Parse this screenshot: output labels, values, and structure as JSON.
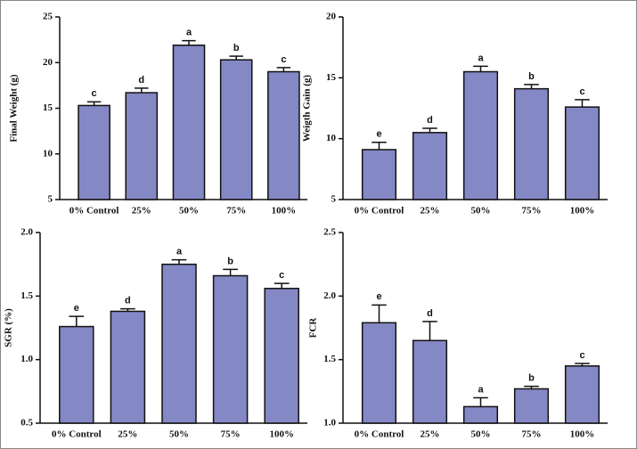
{
  "chart_data": [
    {
      "type": "bar",
      "ylabel": "Final Weight (g)",
      "categories": [
        "0% Control",
        "25%",
        "50%",
        "75%",
        "100%"
      ],
      "values": [
        15.3,
        16.7,
        21.9,
        20.3,
        19.0
      ],
      "errors": [
        0.4,
        0.5,
        0.5,
        0.4,
        0.45
      ],
      "annotations": [
        "c",
        "d",
        "a",
        "b",
        "c"
      ],
      "color": "#8488c4",
      "ylim": [
        5,
        25
      ],
      "yticks": [
        5,
        10,
        15,
        20,
        25
      ]
    },
    {
      "type": "bar",
      "ylabel": "Weigth Gain (g)",
      "categories": [
        "0% Control",
        "25%",
        "50%",
        "75%",
        "100%"
      ],
      "values": [
        9.1,
        10.5,
        15.5,
        14.1,
        12.6
      ],
      "errors": [
        0.6,
        0.35,
        0.45,
        0.35,
        0.6
      ],
      "annotations": [
        "e",
        "d",
        "a",
        "b",
        "c"
      ],
      "color": "#8488c4",
      "ylim": [
        5,
        20
      ],
      "yticks": [
        5,
        10,
        15,
        20
      ]
    },
    {
      "type": "bar",
      "ylabel": "SGR (%)",
      "categories": [
        "0% Control",
        "25%",
        "50%",
        "75%",
        "100%"
      ],
      "values": [
        1.26,
        1.38,
        1.75,
        1.66,
        1.56
      ],
      "errors": [
        0.08,
        0.02,
        0.035,
        0.05,
        0.04
      ],
      "annotations": [
        "e",
        "d",
        "a",
        "b",
        "c"
      ],
      "color": "#8488c4",
      "ylim": [
        0.5,
        2.0
      ],
      "yticks": [
        0.5,
        {
          "value": 1,
          "label": "1.0"
        },
        1.5,
        {
          "value": 2,
          "label": "2.0"
        }
      ]
    },
    {
      "type": "bar",
      "ylabel": "FCR",
      "categories": [
        "0% Control",
        "25%",
        "50%",
        "75%",
        "100%"
      ],
      "values": [
        1.79,
        1.65,
        1.13,
        1.27,
        1.45
      ],
      "errors": [
        0.14,
        0.15,
        0.07,
        0.02,
        0.02
      ],
      "annotations": [
        "e",
        "d",
        "a",
        "b",
        "c"
      ],
      "color": "#8488c4",
      "ylim": [
        1.0,
        2.5
      ],
      "yticks": [
        {
          "value": 1,
          "label": "1.0"
        },
        1.5,
        {
          "value": 2,
          "label": "2.0"
        },
        2.5
      ]
    }
  ]
}
